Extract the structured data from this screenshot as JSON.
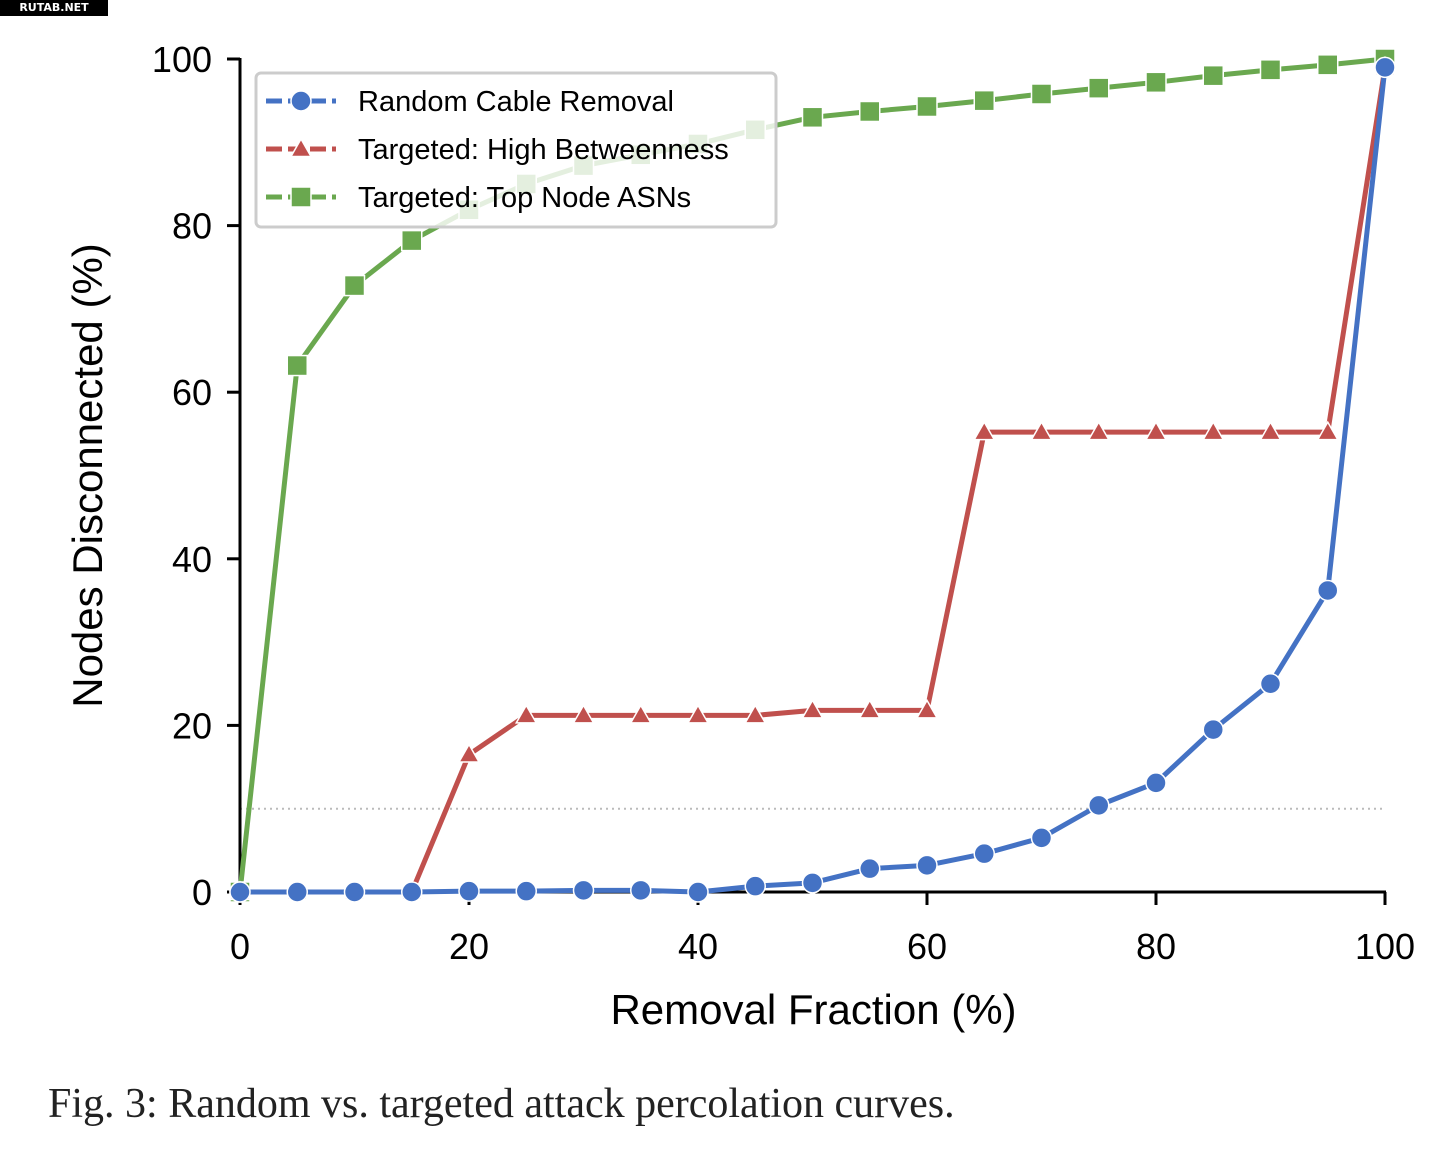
{
  "watermark": "RUTAB.NET",
  "caption": "Fig. 3: Random vs. targeted attack percolation curves.",
  "chart_data": {
    "type": "line",
    "title": "",
    "xlabel": "Removal Fraction (%)",
    "ylabel": "Nodes Disconnected (%)",
    "xlim": [
      0,
      100
    ],
    "ylim": [
      0,
      100
    ],
    "xticks": [
      0,
      20,
      40,
      60,
      80,
      100
    ],
    "yticks": [
      0,
      20,
      40,
      60,
      80,
      100
    ],
    "grid": false,
    "legend_position": "top-left",
    "reference_line": {
      "y": 10,
      "style": "dotted",
      "color": "#bbbbbb"
    },
    "x": [
      0,
      5,
      10,
      15,
      20,
      25,
      30,
      35,
      40,
      45,
      50,
      55,
      60,
      65,
      70,
      75,
      80,
      85,
      90,
      95,
      100
    ],
    "series": [
      {
        "name": "Random Cable Removal",
        "color": "#4472c4",
        "marker": "circle",
        "values": [
          0,
          0,
          0,
          0,
          0.1,
          0.1,
          0.2,
          0.2,
          0,
          0.7,
          1.1,
          2.8,
          3.2,
          4.6,
          6.5,
          10.4,
          13.1,
          19.5,
          25.0,
          36.2,
          99.0
        ]
      },
      {
        "name": "Targeted: High Betweenness",
        "color": "#c0504d",
        "marker": "triangle",
        "values": [
          0,
          0,
          0,
          0,
          16.5,
          21.2,
          21.2,
          21.2,
          21.2,
          21.2,
          21.8,
          21.8,
          21.8,
          55.2,
          55.2,
          55.2,
          55.2,
          55.2,
          55.2,
          55.2,
          99.0
        ]
      },
      {
        "name": "Targeted: Top Node ASNs",
        "color": "#6aa84f",
        "marker": "square",
        "values": [
          0,
          63.2,
          72.8,
          78.2,
          81.9,
          85.0,
          87.2,
          88.5,
          89.8,
          91.5,
          93.0,
          93.7,
          94.3,
          95.0,
          95.8,
          96.5,
          97.2,
          98.0,
          98.7,
          99.3,
          100.0
        ]
      }
    ]
  }
}
